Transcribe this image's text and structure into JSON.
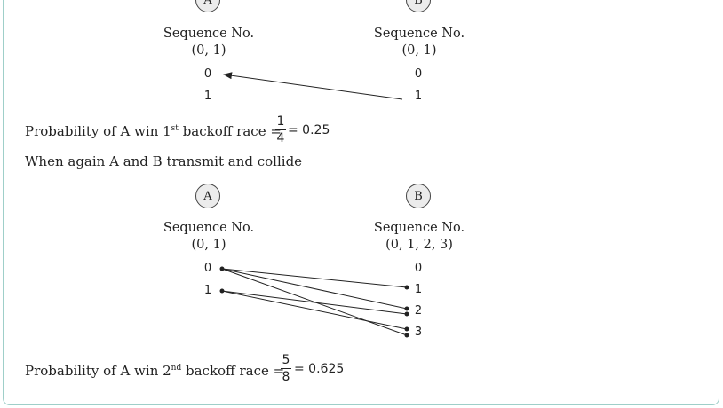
{
  "section1": {
    "node_a": "A",
    "node_b": "B",
    "a_seq_title": "Sequence No.",
    "a_seq_range": "(0, 1)",
    "b_seq_title": "Sequence No.",
    "b_seq_range": "(0, 1)",
    "a_values": [
      "0",
      "1"
    ],
    "b_values": [
      "0",
      "1"
    ],
    "prob_prefix": "Probability of A win 1",
    "prob_sup": "st",
    "prob_suffix": " backoff race =",
    "frac_num": "1",
    "frac_den": "4",
    "result": "= 0.25"
  },
  "transition_text": "When again A and B transmit and collide",
  "section2": {
    "node_a": "A",
    "node_b": "B",
    "a_seq_title": "Sequence No.",
    "a_seq_range": "(0, 1)",
    "b_seq_title": "Sequence No.",
    "b_seq_range": "(0, 1, 2, 3)",
    "a_values": [
      "0",
      "1"
    ],
    "b_values": [
      "0",
      "1",
      "2",
      "3"
    ],
    "prob_prefix": "Probability of A win 2",
    "prob_sup": "nd",
    "prob_suffix": " backoff race =",
    "frac_num": "5",
    "frac_den": "8",
    "result": "= 0.625"
  },
  "colors": {
    "border": "#9fcfc9",
    "node_fill": "#ececec",
    "text": "#222222"
  }
}
